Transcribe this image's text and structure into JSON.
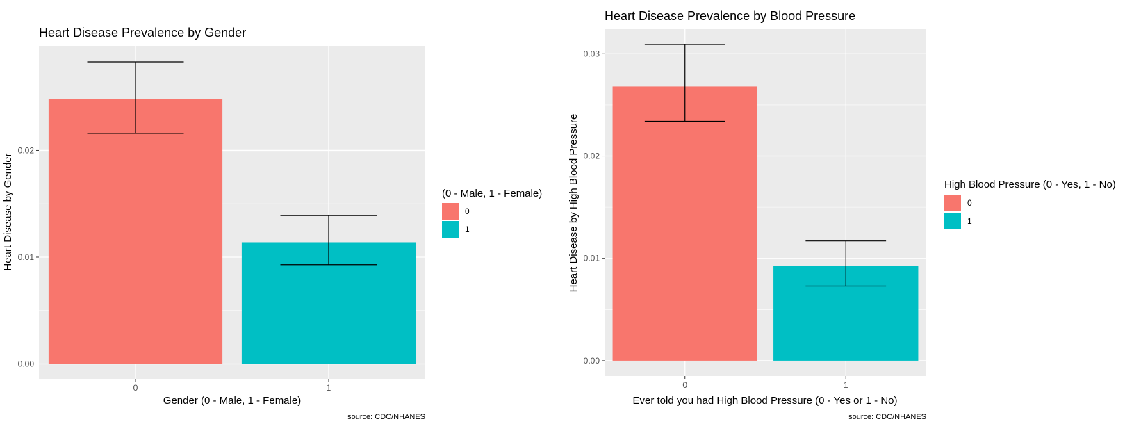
{
  "chart_data": [
    {
      "type": "bar",
      "title": "Heart Disease Prevalence by Gender",
      "xlabel": "Gender (0 - Male, 1 - Female)",
      "ylabel": "Heart Disease by Gender",
      "categories": [
        "0",
        "1"
      ],
      "values": [
        0.0248,
        0.0114
      ],
      "error_low": [
        0.0216,
        0.0093
      ],
      "error_high": [
        0.0283,
        0.0139
      ],
      "ylim": [
        -0.0014,
        0.0298
      ],
      "yticks": [
        0,
        0.01,
        0.02
      ],
      "ytick_labels": [
        "0.00",
        "0.01",
        "0.02"
      ],
      "grid": true,
      "legend": {
        "title": "(0 - Male, 1 - Female)",
        "position": "right",
        "entries": [
          "0",
          "1"
        ]
      },
      "colors": [
        "#F8766D",
        "#00BFC4"
      ],
      "caption": "source: CDC/NHANES"
    },
    {
      "type": "bar",
      "title": "Heart Disease Prevalence by Blood Pressure",
      "xlabel": "Ever told you had High Blood Pressure (0 - Yes or 1 - No)",
      "ylabel": "Heart Disease by High Blood Pressure",
      "categories": [
        "0",
        "1"
      ],
      "values": [
        0.0268,
        0.0093
      ],
      "error_low": [
        0.0234,
        0.0073
      ],
      "error_high": [
        0.0309,
        0.0117
      ],
      "ylim": [
        -0.0015,
        0.0324
      ],
      "yticks": [
        0,
        0.01,
        0.02,
        0.03
      ],
      "ytick_labels": [
        "0.00",
        "0.01",
        "0.02",
        "0.03"
      ],
      "grid": true,
      "legend": {
        "title": "High Blood Pressure (0 - Yes, 1 - No)",
        "position": "right",
        "entries": [
          "0",
          "1"
        ]
      },
      "colors": [
        "#F8766D",
        "#00BFC4"
      ],
      "caption": "source: CDC/NHANES"
    }
  ]
}
